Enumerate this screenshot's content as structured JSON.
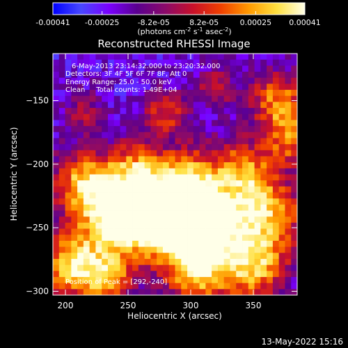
{
  "chart_data": {
    "type": "heatmap",
    "title": "Reconstructed RHESSI Image",
    "xlabel": "Heliocentric X (arcsec)",
    "ylabel": "Heliocentric Y (arcsec)",
    "xlim": [
      190,
      385
    ],
    "ylim": [
      -303,
      -113
    ],
    "x_ticks": [
      200,
      250,
      300,
      350
    ],
    "y_ticks": [
      -150,
      -200,
      -250,
      -300
    ],
    "colorbar": {
      "range": [
        -0.00041,
        0.00041
      ],
      "tick_values": [
        -0.00041,
        -0.00025,
        -8.2e-05,
        8.2e-05,
        0.00025,
        0.00041
      ],
      "tick_labels": [
        "-0.00041",
        "-0.00025",
        "-8.2e-05",
        "8.2e-05",
        "0.00025",
        "0.00041"
      ],
      "unit_label": "(photons cm-2 s-1 asec-2)",
      "colormap": [
        "#0000ff",
        "#4848ff",
        "#7a00ff",
        "#5a0090",
        "#8a0a6a",
        "#c8102a",
        "#f04000",
        "#ff9a00",
        "#ffe040",
        "#ffffe8"
      ]
    },
    "annotations": [
      "6-May-2013 23:14:32.000 to 23:20:32.000",
      "Detectors: 3F 4F 5F 6F 7F 8F, Att 0",
      "Energy Range: 25.0 - 50.0 keV",
      "Clean     Total counts: 1.49E+04",
      "Position of Peak = [292,-240]"
    ],
    "peak": {
      "x": 292,
      "y": -240
    },
    "intensity_blobs": [
      {
        "x": 290,
        "y": -240,
        "amp": 1.0,
        "sigma": 22
      },
      {
        "x": 265,
        "y": -232,
        "amp": 0.85,
        "sigma": 24
      },
      {
        "x": 315,
        "y": -250,
        "amp": 0.75,
        "sigma": 20
      },
      {
        "x": 215,
        "y": -215,
        "amp": 0.75,
        "sigma": 18
      },
      {
        "x": 240,
        "y": -245,
        "amp": 0.7,
        "sigma": 20
      },
      {
        "x": 340,
        "y": -205,
        "amp": 0.6,
        "sigma": 18
      },
      {
        "x": 360,
        "y": -240,
        "amp": 0.75,
        "sigma": 22
      },
      {
        "x": 350,
        "y": -283,
        "amp": 0.7,
        "sigma": 18
      },
      {
        "x": 305,
        "y": -285,
        "amp": 0.7,
        "sigma": 18
      },
      {
        "x": 205,
        "y": -280,
        "amp": 0.85,
        "sigma": 18
      },
      {
        "x": 235,
        "y": -290,
        "amp": 0.6,
        "sigma": 14
      },
      {
        "x": 370,
        "y": -150,
        "amp": 0.65,
        "sigma": 16
      },
      {
        "x": 380,
        "y": -180,
        "amp": 0.55,
        "sigma": 14
      },
      {
        "x": 280,
        "y": -160,
        "amp": 0.5,
        "sigma": 12
      },
      {
        "x": 320,
        "y": -140,
        "amp": 0.35,
        "sigma": 12
      },
      {
        "x": 215,
        "y": -160,
        "amp": 0.3,
        "sigma": 12
      },
      {
        "x": 255,
        "y": -200,
        "amp": 0.35,
        "sigma": 14
      },
      {
        "x": 300,
        "y": -205,
        "amp": 0.4,
        "sigma": 14
      }
    ]
  },
  "footer": {
    "timestamp": "13-May-2022 15:16"
  }
}
